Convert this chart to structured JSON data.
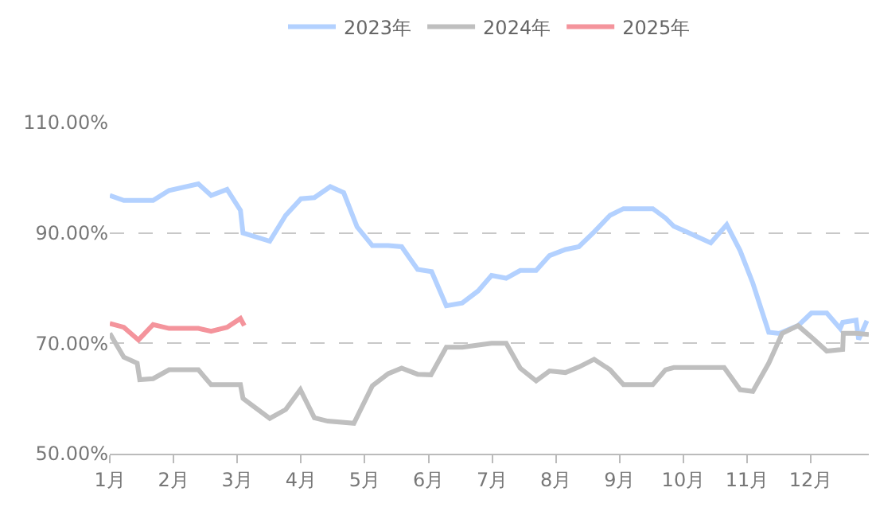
{
  "chart_data": {
    "type": "line",
    "xlim": [
      1,
      12.91
    ],
    "ylim": [
      50,
      110
    ],
    "xticks": [
      {
        "value": 1,
        "label": "1月"
      },
      {
        "value": 2,
        "label": "2月"
      },
      {
        "value": 3,
        "label": "3月"
      },
      {
        "value": 4,
        "label": "4月"
      },
      {
        "value": 5,
        "label": "5月"
      },
      {
        "value": 6,
        "label": "6月"
      },
      {
        "value": 7,
        "label": "7月"
      },
      {
        "value": 8,
        "label": "8月"
      },
      {
        "value": 9,
        "label": "9月"
      },
      {
        "value": 10,
        "label": "10月"
      },
      {
        "value": 11,
        "label": "11月"
      },
      {
        "value": 12,
        "label": "12月"
      }
    ],
    "yticks": [
      {
        "value": 50,
        "label": "50.00%"
      },
      {
        "value": 70,
        "label": "70.00%"
      },
      {
        "value": 90,
        "label": "90.00%"
      },
      {
        "value": 110,
        "label": "110.00%"
      }
    ],
    "grid": "y",
    "legend": "top",
    "marker": "none",
    "line_style": "solid",
    "series": [
      {
        "name": "2023年",
        "color": "#b3d1ff",
        "x": [
          1.0,
          1.22,
          1.68,
          1.93,
          2.39,
          2.59,
          2.84,
          3.05,
          3.09,
          3.51,
          3.76,
          4.0,
          4.21,
          4.46,
          4.67,
          4.88,
          5.12,
          5.37,
          5.58,
          5.83,
          6.05,
          6.28,
          6.53,
          6.78,
          6.99,
          7.22,
          7.44,
          7.69,
          7.9,
          8.15,
          8.36,
          8.6,
          8.85,
          9.06,
          9.52,
          9.72,
          9.85,
          10.05,
          10.22,
          10.43,
          10.68,
          10.89,
          11.09,
          11.34,
          11.51,
          11.8,
          12.01,
          12.25,
          12.46,
          12.5,
          12.71,
          12.75,
          12.88
        ],
        "values": [
          96.8,
          95.9,
          95.9,
          97.7,
          98.9,
          96.8,
          97.9,
          94.1,
          90.0,
          88.5,
          93.2,
          96.2,
          96.4,
          98.4,
          97.3,
          91.1,
          87.7,
          87.7,
          87.5,
          83.4,
          83.0,
          76.8,
          77.3,
          79.5,
          82.3,
          81.8,
          83.2,
          83.2,
          85.9,
          87.0,
          87.5,
          90.2,
          93.2,
          94.4,
          94.4,
          92.7,
          91.2,
          90.2,
          89.3,
          88.2,
          91.5,
          86.8,
          80.9,
          72.0,
          71.8,
          73.2,
          75.5,
          75.5,
          72.7,
          73.8,
          74.2,
          70.7,
          74.1
        ]
      },
      {
        "name": "2024年",
        "color": "#bfbfbf",
        "x": [
          1.0,
          1.22,
          1.43,
          1.47,
          1.68,
          1.93,
          2.39,
          2.59,
          3.05,
          3.09,
          3.51,
          3.76,
          3.99,
          4.21,
          4.42,
          4.83,
          5.12,
          5.37,
          5.58,
          5.83,
          6.04,
          6.28,
          6.53,
          6.78,
          6.99,
          7.22,
          7.44,
          7.69,
          7.9,
          8.15,
          8.36,
          8.6,
          8.85,
          9.06,
          9.52,
          9.72,
          9.85,
          10.64,
          10.89,
          11.09,
          11.34,
          11.55,
          11.8,
          12.05,
          12.25,
          12.5,
          12.51,
          12.71,
          12.91
        ],
        "values": [
          71.8,
          67.5,
          66.4,
          63.4,
          63.6,
          65.2,
          65.2,
          62.5,
          62.5,
          60.0,
          56.4,
          58.0,
          61.6,
          56.5,
          55.9,
          55.5,
          62.3,
          64.5,
          65.5,
          64.4,
          64.3,
          69.3,
          69.3,
          69.7,
          70.0,
          70.0,
          65.5,
          63.2,
          65.0,
          64.7,
          65.7,
          67.1,
          65.2,
          62.5,
          62.5,
          65.2,
          65.6,
          65.6,
          61.6,
          61.3,
          66.4,
          71.8,
          73.2,
          70.7,
          68.6,
          68.9,
          71.8,
          71.8,
          71.6
        ]
      },
      {
        "name": "2025年",
        "color": "#f4949c",
        "x": [
          1.0,
          1.22,
          1.45,
          1.68,
          1.93,
          2.39,
          2.59,
          2.84,
          3.05,
          3.11
        ],
        "values": [
          73.6,
          72.9,
          70.6,
          73.4,
          72.7,
          72.7,
          72.2,
          72.9,
          74.5,
          73.2
        ]
      }
    ]
  }
}
